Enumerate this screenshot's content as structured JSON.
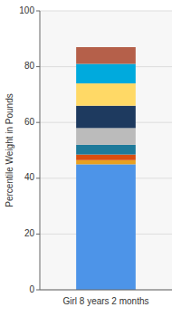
{
  "chart_data": {
    "type": "bar",
    "stacked": true,
    "grid": true,
    "categories": [
      "Girl 8 years 2 months"
    ],
    "y_label": "Percentile Weight in Pounds",
    "series": [
      {
        "color": "#4D94E8",
        "values": [
          45
        ]
      },
      {
        "color": "#E8A020",
        "values": [
          1.5
        ]
      },
      {
        "color": "#D94E10",
        "values": [
          2
        ]
      },
      {
        "color": "#1E7A9A",
        "values": [
          3.5
        ]
      },
      {
        "color": "#BBBBBB",
        "values": [
          6
        ]
      },
      {
        "color": "#1E3A5F",
        "values": [
          8
        ]
      },
      {
        "color": "#FFD966",
        "values": [
          8
        ]
      },
      {
        "color": "#00AADD",
        "values": [
          7
        ]
      },
      {
        "color": "#B5604A",
        "values": [
          6
        ]
      }
    ],
    "ylim": [
      0,
      100
    ],
    "yticks": [
      0,
      20,
      40,
      60,
      80,
      100
    ]
  }
}
